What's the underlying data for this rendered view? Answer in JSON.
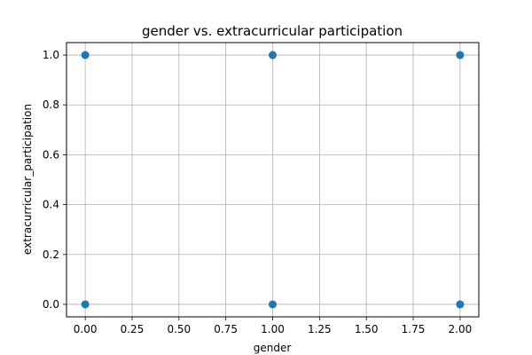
{
  "chart_data": {
    "type": "scatter",
    "title": "gender vs. extracurricular participation",
    "xlabel": "gender",
    "ylabel": "extracurricular_participation",
    "xlim": [
      -0.1,
      2.1
    ],
    "ylim": [
      -0.05,
      1.05
    ],
    "xticks": [
      0.0,
      0.25,
      0.5,
      0.75,
      1.0,
      1.25,
      1.5,
      1.75,
      2.0
    ],
    "xtick_labels": [
      "0.00",
      "0.25",
      "0.50",
      "0.75",
      "1.00",
      "1.25",
      "1.50",
      "1.75",
      "2.00"
    ],
    "yticks": [
      0.0,
      0.2,
      0.4,
      0.6,
      0.8,
      1.0
    ],
    "ytick_labels": [
      "0.0",
      "0.2",
      "0.4",
      "0.6",
      "0.8",
      "1.0"
    ],
    "grid": true,
    "points": [
      {
        "x": 0,
        "y": 1
      },
      {
        "x": 1,
        "y": 1
      },
      {
        "x": 2,
        "y": 1
      },
      {
        "x": 0,
        "y": 0
      },
      {
        "x": 1,
        "y": 0
      },
      {
        "x": 2,
        "y": 0
      }
    ],
    "marker_color": "#1f77b4",
    "grid_color": "#b0b0b0"
  }
}
